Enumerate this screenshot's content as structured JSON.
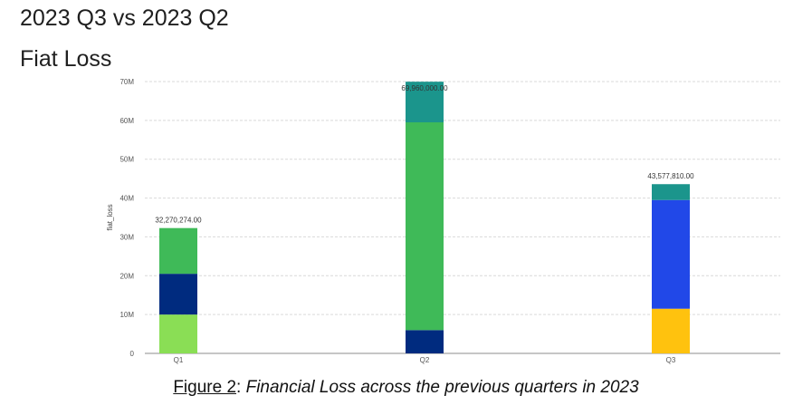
{
  "page": {
    "heading_1": "2023 Q3 vs 2023 Q2",
    "heading_2": "Fiat Loss",
    "caption_figure": "Figure 2",
    "caption_sep": ": ",
    "caption_text": "Financial Loss across the previous quarters in 2023"
  },
  "chart_data": {
    "type": "bar",
    "stacked": true,
    "title": "",
    "xlabel": "",
    "ylabel": "fiat_loss",
    "categories": [
      "Q1",
      "Q2",
      "Q3"
    ],
    "ylim": [
      0,
      70000000
    ],
    "yticks": [
      0,
      10000000,
      20000000,
      30000000,
      40000000,
      50000000,
      60000000,
      70000000
    ],
    "ytick_labels": [
      "0",
      "10M",
      "20M",
      "30M",
      "40M",
      "50M",
      "60M",
      "70M"
    ],
    "grid": true,
    "legend": "none",
    "series": [
      {
        "color": "#8ade55",
        "values": [
          10000000,
          0,
          0
        ]
      },
      {
        "color": "#002b7f",
        "values": [
          10500000,
          6000000,
          0
        ]
      },
      {
        "color": "#ffc20e",
        "values": [
          0,
          0,
          11500000
        ]
      },
      {
        "color": "#2148e8",
        "values": [
          0,
          0,
          28000000
        ]
      },
      {
        "color": "#3fba58",
        "values": [
          11770274,
          53500000,
          0
        ]
      },
      {
        "color": "#1b958c",
        "values": [
          0,
          10460000,
          4077810
        ]
      }
    ],
    "totals": [
      32270274,
      69960000,
      43577810
    ],
    "total_labels": [
      "32,270,274.00",
      "69,960,000.00",
      "43,577,810.00"
    ]
  }
}
